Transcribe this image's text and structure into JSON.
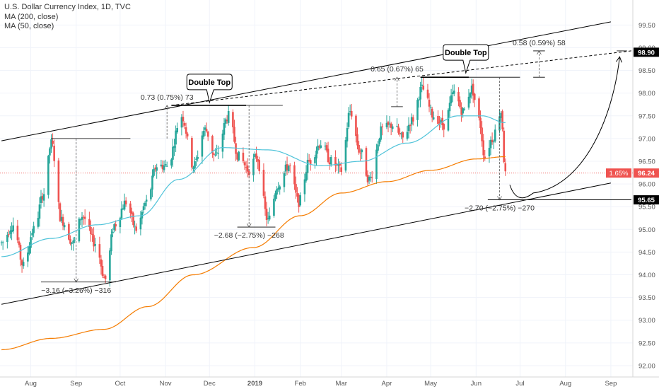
{
  "legend": {
    "title": "U.S. Dollar Currency Index, 1D, TVC",
    "ma200": "MA (200, close)",
    "ma50": "MA (50, close)"
  },
  "colors": {
    "up": "#26a69a",
    "down": "#ef5350",
    "ma50": "#4fc3d9",
    "ma200": "#f57c00",
    "trendline": "#000000",
    "current_price_bg": "#ef5350",
    "axis_text": "#555555",
    "grid": "#f0f3fa"
  },
  "chart_data": {
    "type": "candlestick",
    "instrument": "U.S. Dollar Currency Index",
    "timeframe": "1D",
    "source": "TVC",
    "y_axis": {
      "ticks": [
        92.0,
        92.5,
        93.0,
        93.5,
        94.0,
        94.5,
        95.0,
        95.5,
        96.0,
        96.5,
        97.0,
        97.5,
        98.0,
        98.5,
        99.0,
        99.5
      ],
      "tick_labels": [
        "92.00",
        "92.50",
        "93.00",
        "93.50",
        "94.00",
        "94.50",
        "95.00",
        "95.50",
        "96.00",
        "96.50",
        "97.00",
        "97.50",
        "98.00",
        "98.50",
        "99.00",
        "99.50"
      ],
      "range": [
        91.75,
        100.05
      ]
    },
    "x_axis": {
      "labels": [
        "Aug",
        "Sep",
        "Oct",
        "Nov",
        "Dec",
        "2019",
        "Feb",
        "Mar",
        "Apr",
        "May",
        "Jun",
        "Jul",
        "Aug",
        "Sep"
      ],
      "dates": [
        "2018-08-01",
        "2018-09-01",
        "2018-10-01",
        "2018-11-01",
        "2018-12-01",
        "2019-01-01",
        "2019-02-01",
        "2019-03-01",
        "2019-04-01",
        "2019-05-01",
        "2019-06-01",
        "2019-07-01",
        "2019-08-01",
        "2019-09-01"
      ]
    },
    "price_anchors": [
      [
        "2018-07-12",
        94.7
      ],
      [
        "2018-07-20",
        95.1
      ],
      [
        "2018-07-27",
        94.2
      ],
      [
        "2018-08-03",
        95.0
      ],
      [
        "2018-08-10",
        95.8
      ],
      [
        "2018-08-15",
        96.9
      ],
      [
        "2018-08-22",
        95.2
      ],
      [
        "2018-08-30",
        94.7
      ],
      [
        "2018-09-05",
        95.3
      ],
      [
        "2018-09-14",
        94.7
      ],
      [
        "2018-09-21",
        93.9
      ],
      [
        "2018-09-27",
        95.1
      ],
      [
        "2018-10-05",
        95.6
      ],
      [
        "2018-10-12",
        95.0
      ],
      [
        "2018-10-19",
        95.6
      ],
      [
        "2018-10-26",
        96.4
      ],
      [
        "2018-11-02",
        96.4
      ],
      [
        "2018-11-12",
        97.5
      ],
      [
        "2018-11-20",
        96.4
      ],
      [
        "2018-11-28",
        97.2
      ],
      [
        "2018-12-05",
        96.6
      ],
      [
        "2018-12-14",
        97.5
      ],
      [
        "2018-12-21",
        96.6
      ],
      [
        "2018-12-28",
        96.3
      ],
      [
        "2019-01-02",
        96.6
      ],
      [
        "2019-01-10",
        95.2
      ],
      [
        "2019-01-17",
        96.0
      ],
      [
        "2019-01-24",
        96.4
      ],
      [
        "2019-01-31",
        95.6
      ],
      [
        "2019-02-07",
        96.5
      ],
      [
        "2019-02-15",
        96.9
      ],
      [
        "2019-02-22",
        96.5
      ],
      [
        "2019-03-01",
        96.3
      ],
      [
        "2019-03-07",
        97.6
      ],
      [
        "2019-03-14",
        96.7
      ],
      [
        "2019-03-20",
        96.1
      ],
      [
        "2019-03-29",
        97.2
      ],
      [
        "2019-04-05",
        97.3
      ],
      [
        "2019-04-12",
        97.0
      ],
      [
        "2019-04-18",
        97.4
      ],
      [
        "2019-04-25",
        98.1
      ],
      [
        "2019-05-03",
        97.5
      ],
      [
        "2019-05-10",
        97.3
      ],
      [
        "2019-05-17",
        98.0
      ],
      [
        "2019-05-23",
        97.6
      ],
      [
        "2019-05-29",
        98.1
      ],
      [
        "2019-06-03",
        97.4
      ],
      [
        "2019-06-07",
        96.6
      ],
      [
        "2019-06-12",
        97.0
      ],
      [
        "2019-06-18",
        97.6
      ],
      [
        "2019-06-21",
        96.2
      ]
    ],
    "ma200_anchors": [
      [
        "2018-07-12",
        92.35
      ],
      [
        "2018-08-15",
        92.6
      ],
      [
        "2018-09-20",
        92.8
      ],
      [
        "2018-10-20",
        93.3
      ],
      [
        "2018-11-20",
        94.0
      ],
      [
        "2018-12-31",
        94.6
      ],
      [
        "2019-02-01",
        95.3
      ],
      [
        "2019-03-01",
        95.8
      ],
      [
        "2019-04-01",
        96.05
      ],
      [
        "2019-05-01",
        96.3
      ],
      [
        "2019-06-01",
        96.55
      ],
      [
        "2019-06-21",
        96.6
      ]
    ],
    "ma50_anchors": [
      [
        "2018-07-12",
        94.4
      ],
      [
        "2018-08-15",
        94.8
      ],
      [
        "2018-09-15",
        95.1
      ],
      [
        "2018-10-15",
        95.3
      ],
      [
        "2018-11-10",
        96.1
      ],
      [
        "2018-12-10",
        96.8
      ],
      [
        "2019-01-10",
        96.75
      ],
      [
        "2019-02-15",
        96.4
      ],
      [
        "2019-03-15",
        96.5
      ],
      [
        "2019-04-15",
        96.9
      ],
      [
        "2019-05-20",
        97.5
      ],
      [
        "2019-06-05",
        97.5
      ],
      [
        "2019-06-21",
        97.35
      ]
    ],
    "price_labels": [
      {
        "value": 98.9,
        "text": "98.90",
        "style": "black"
      },
      {
        "value": 96.24,
        "text": "96.24",
        "pct": "1.65%",
        "style": "red"
      },
      {
        "value": 95.65,
        "text": "95.65",
        "style": "black"
      }
    ],
    "callouts": [
      {
        "text": "Double Top",
        "date": "2018-12-01",
        "value": 97.7
      },
      {
        "text": "Double Top",
        "date": "2019-05-25",
        "value": 98.35
      }
    ],
    "measurements": [
      {
        "text": "0.73 (0.75%) 73",
        "date": "2018-11-02",
        "from": 97.0,
        "to": 97.73
      },
      {
        "text": "0.65 (0.67%) 65",
        "date": "2019-04-08",
        "from": 97.7,
        "to": 98.35
      },
      {
        "text": "0.58 (0.59%) 58",
        "date": "2019-07-14",
        "from": 98.35,
        "to": 98.93
      },
      {
        "text": "−3.16 (−3.26%) −316",
        "date": "2018-09-01",
        "from": 97.0,
        "to": 93.84
      },
      {
        "text": "−2.68 (−2.75%) −268",
        "date": "2018-12-28",
        "from": 97.73,
        "to": 95.05
      },
      {
        "text": "−2.70 (−2.75%) −270",
        "date": "2019-06-17",
        "from": 98.35,
        "to": 95.65
      }
    ],
    "channel_upper": {
      "from": [
        "2018-07-12",
        96.95
      ],
      "to": [
        "2019-09-01",
        99.57
      ]
    },
    "channel_lower": {
      "from": [
        "2018-07-12",
        93.35
      ],
      "to": [
        "2019-09-01",
        96.02
      ]
    },
    "dashed_projection": {
      "from": [
        "2018-11-05",
        97.73
      ],
      "to": [
        "2019-09-15",
        98.93
      ]
    },
    "projection_curve": {
      "start": [
        "2019-06-24",
        95.98
      ],
      "low": [
        "2019-07-10",
        95.8
      ],
      "end": [
        "2019-09-07",
        98.8
      ]
    },
    "grid": true
  }
}
